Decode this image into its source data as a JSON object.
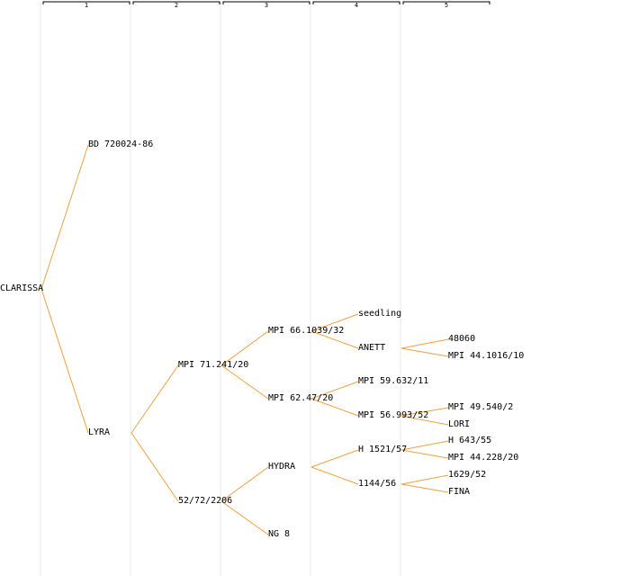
{
  "colors": {
    "branch": "#f0a040",
    "column_line": "#e8e8e8",
    "bracket": "#000000",
    "background": "#ffffff"
  },
  "generations": [
    "1",
    "2",
    "3",
    "4",
    "5"
  ],
  "tree": {
    "name": "CLARISSA",
    "children": [
      {
        "name": "BD 720024-86"
      },
      {
        "name": "LYRA",
        "children": [
          {
            "name": "MPI 71.241/20",
            "children": [
              {
                "name": "MPI 66.1039/32",
                "children": [
                  {
                    "name": "seedling"
                  },
                  {
                    "name": "ANETT",
                    "children": [
                      {
                        "name": "48060"
                      },
                      {
                        "name": "MPI 44.1016/10"
                      }
                    ]
                  }
                ]
              },
              {
                "name": "MPI 62.47/20",
                "children": [
                  {
                    "name": "MPI 59.632/11"
                  },
                  {
                    "name": "MPI 56.993/52",
                    "children": [
                      {
                        "name": "MPI 49.540/2"
                      },
                      {
                        "name": "LORI"
                      }
                    ]
                  }
                ]
              }
            ]
          },
          {
            "name": "52/72/2206",
            "children": [
              {
                "name": "HYDRA",
                "children": [
                  {
                    "name": "H 1521/57",
                    "children": [
                      {
                        "name": "H 643/55"
                      },
                      {
                        "name": "MPI 44.228/20"
                      }
                    ]
                  },
                  {
                    "name": "1144/56",
                    "children": [
                      {
                        "name": "1629/52"
                      },
                      {
                        "name": "FINA"
                      }
                    ]
                  }
                ]
              },
              {
                "name": "NG 8"
              }
            ]
          }
        ]
      }
    ]
  }
}
